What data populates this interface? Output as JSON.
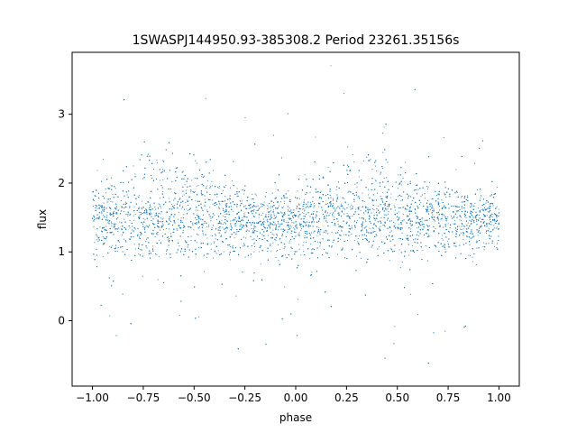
{
  "chart_data": {
    "type": "scatter",
    "title": "1SWASPJ144950.93-385308.2 Period 23261.35156s",
    "xlabel": "phase",
    "ylabel": "flux",
    "xlim": [
      -1.1,
      1.1
    ],
    "ylim": [
      -0.95,
      3.9
    ],
    "x_ticks": [
      -1.0,
      -0.75,
      -0.5,
      -0.25,
      0.0,
      0.25,
      0.5,
      0.75,
      1.0
    ],
    "x_tick_labels": [
      "−1.00",
      "−0.75",
      "−0.50",
      "−0.25",
      "0.00",
      "0.25",
      "0.50",
      "0.75",
      "1.00"
    ],
    "y_ticks": [
      0,
      1,
      2,
      3
    ],
    "y_tick_labels": [
      "0",
      "1",
      "2",
      "3"
    ],
    "grid": false,
    "marker_color": "#1f77b4",
    "x_range": [
      -1.0,
      1.0
    ],
    "baseline_flux": {
      "center": 1.4,
      "half_width": 0.4
    },
    "hump_profile": [
      {
        "phase": -1.0,
        "flux": 1.75
      },
      {
        "phase": -0.9,
        "flux": 2.0
      },
      {
        "phase": -0.8,
        "flux": 2.3
      },
      {
        "phase": -0.7,
        "flux": 2.55
      },
      {
        "phase": -0.6,
        "flux": 2.45
      },
      {
        "phase": -0.5,
        "flux": 2.3
      },
      {
        "phase": -0.4,
        "flux": 2.1
      },
      {
        "phase": -0.3,
        "flux": 1.9
      },
      {
        "phase": -0.2,
        "flux": 1.7
      },
      {
        "phase": -0.1,
        "flux": 1.55
      },
      {
        "phase": 0.0,
        "flux": 1.7
      },
      {
        "phase": 0.1,
        "flux": 2.0
      },
      {
        "phase": 0.2,
        "flux": 2.3
      },
      {
        "phase": 0.3,
        "flux": 2.55
      },
      {
        "phase": 0.4,
        "flux": 2.45
      },
      {
        "phase": 0.5,
        "flux": 2.3
      },
      {
        "phase": 0.6,
        "flux": 2.1
      },
      {
        "phase": 0.7,
        "flux": 1.9
      },
      {
        "phase": 0.8,
        "flux": 1.75
      },
      {
        "phase": 0.9,
        "flux": 1.7
      },
      {
        "phase": 1.0,
        "flux": 1.7
      }
    ]
  }
}
